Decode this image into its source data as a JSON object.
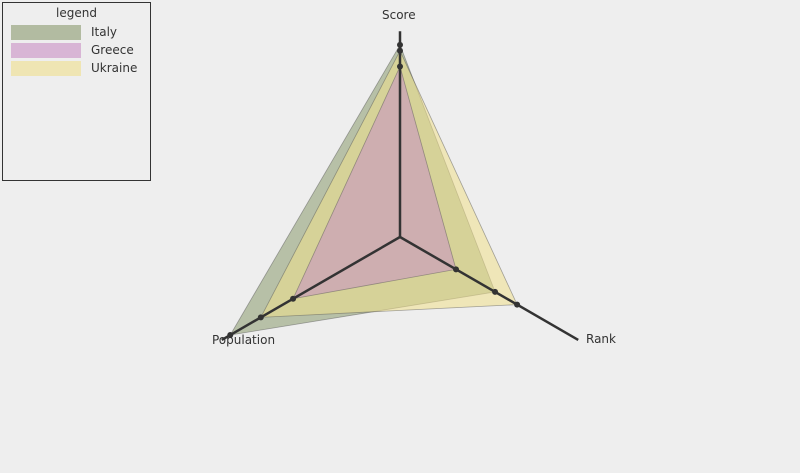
{
  "chart_data": {
    "type": "radar",
    "axes": [
      "Score",
      "Population",
      "Rank"
    ],
    "max": 1,
    "series": [
      {
        "name": "Italy",
        "color": "#8a9a6e",
        "fillOpacity": 0.55,
        "values": [
          0.98,
          1.0,
          0.56
        ]
      },
      {
        "name": "Greece",
        "color": "#c98fc4",
        "fillOpacity": 0.55,
        "values": [
          0.87,
          0.63,
          0.33
        ]
      },
      {
        "name": "Ukraine",
        "color": "#f0e08c",
        "fillOpacity": 0.55,
        "values": [
          0.95,
          0.82,
          0.69
        ]
      }
    ],
    "legend_title": "legend",
    "legend_position": "top-left"
  }
}
